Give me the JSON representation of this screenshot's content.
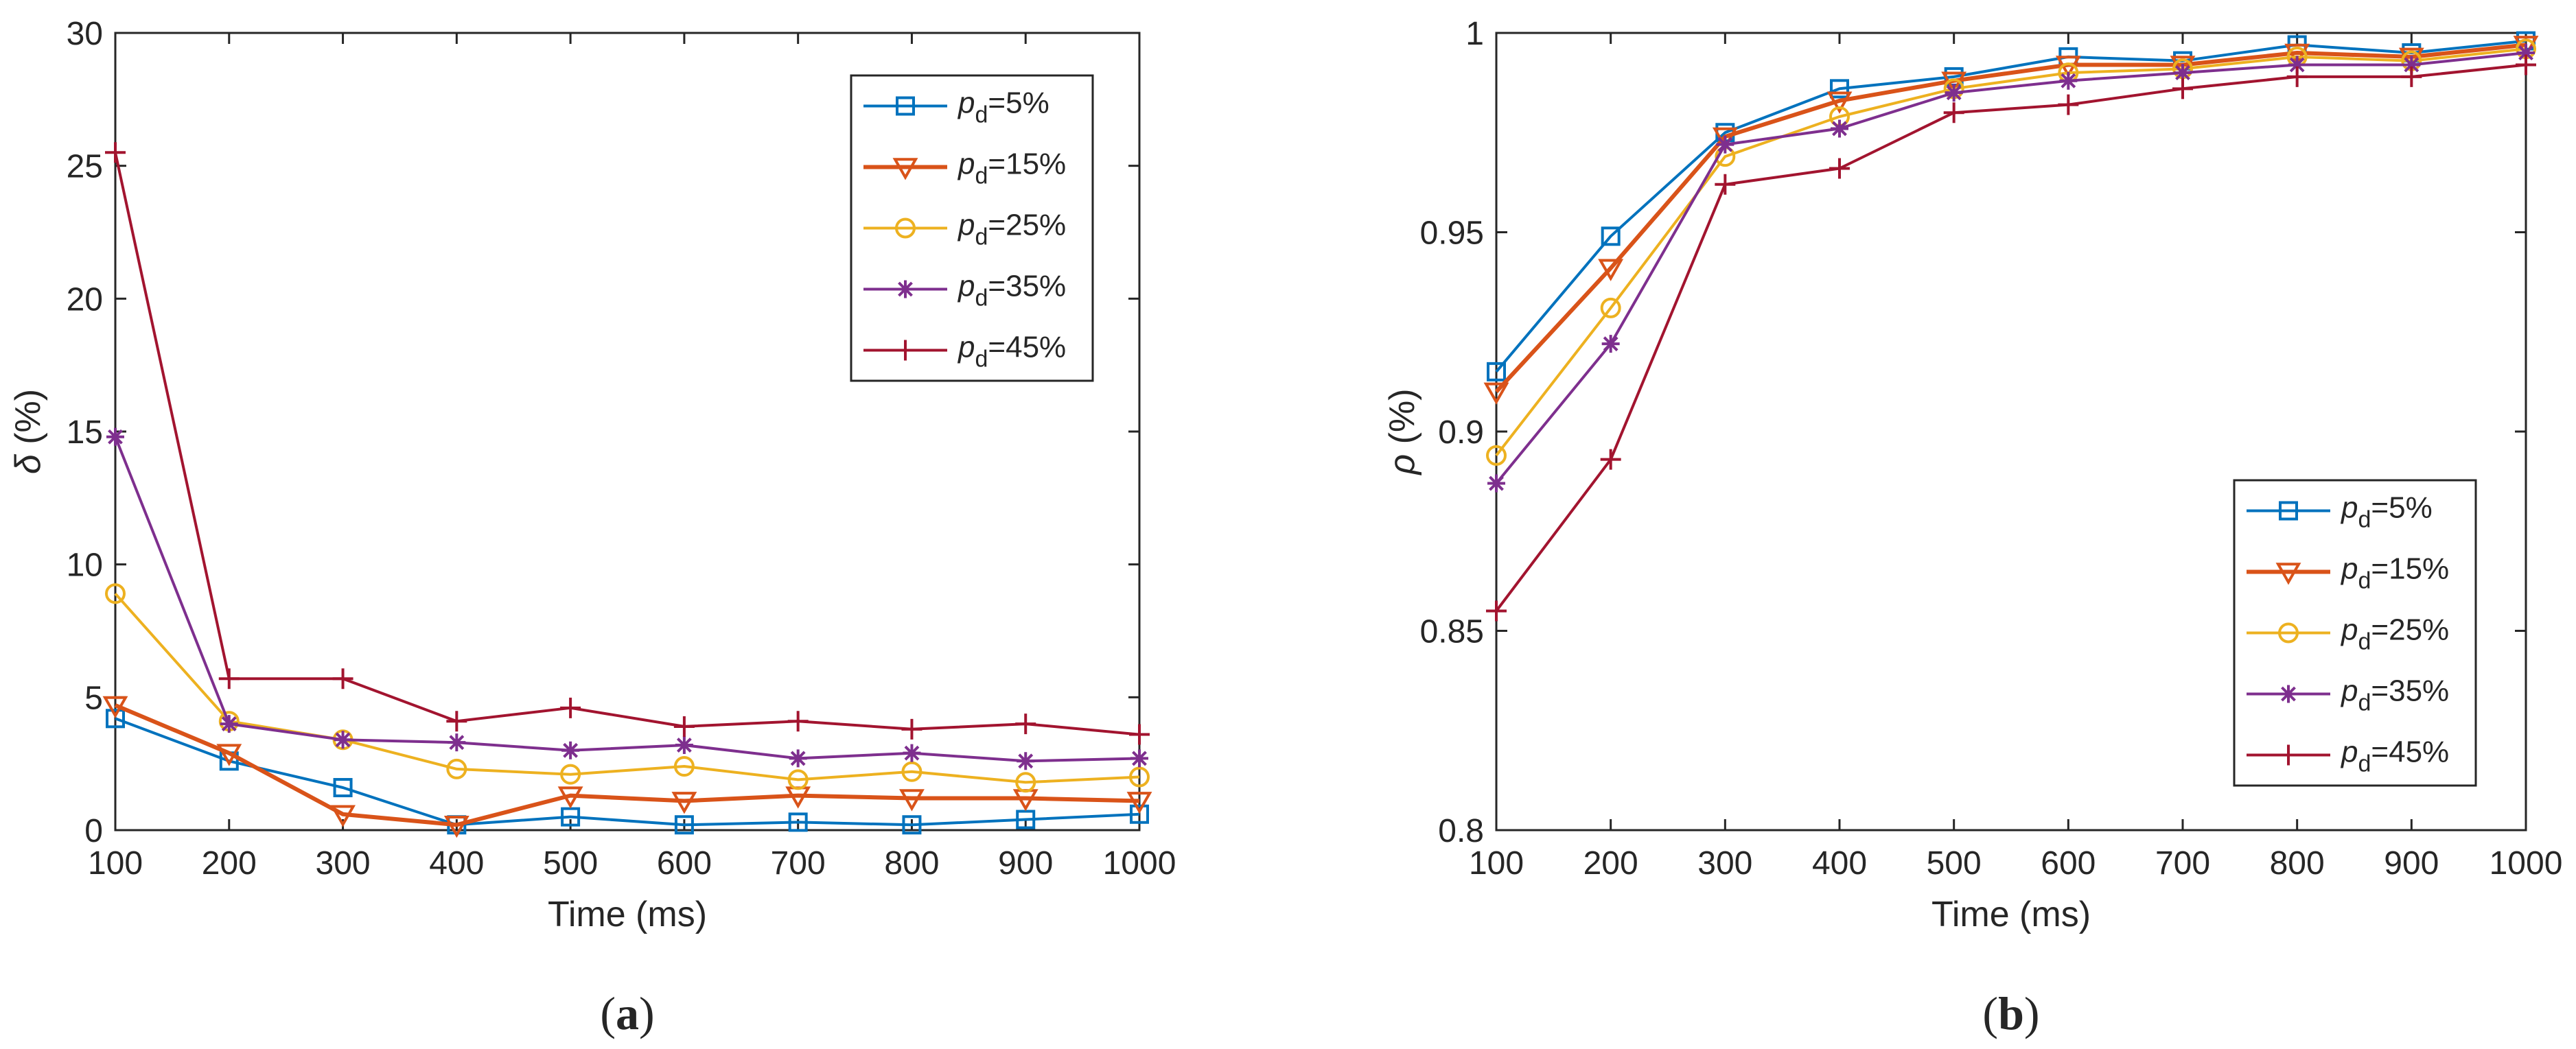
{
  "chart_data": [
    {
      "type": "line",
      "panel_label": "(a)",
      "panel_letter": "a",
      "xlabel": "Time (ms)",
      "ylabel_symbol": "δ",
      "ylabel_unit": " (%)",
      "x": [
        100,
        200,
        300,
        400,
        500,
        600,
        700,
        800,
        900,
        1000
      ],
      "xlim": [
        100,
        1000
      ],
      "ylim": [
        0,
        30
      ],
      "xticks": [
        "100",
        "200",
        "300",
        "400",
        "500",
        "600",
        "700",
        "800",
        "900",
        "1000"
      ],
      "yticks": [
        "0",
        "5",
        "10",
        "15",
        "20",
        "25",
        "30"
      ],
      "ytick_values": [
        0,
        5,
        10,
        15,
        20,
        25,
        30
      ],
      "grid": false,
      "legend_position": "top-right",
      "series": [
        {
          "name": "p_d=5%",
          "legend_var": "p",
          "legend_sub": "d",
          "legend_value": "=5%",
          "color": "#0072BD",
          "marker": "square",
          "values": [
            4.2,
            2.6,
            1.6,
            0.2,
            0.5,
            0.2,
            0.3,
            0.2,
            0.4,
            0.6
          ]
        },
        {
          "name": "p_d=15%",
          "legend_var": "p",
          "legend_sub": "d",
          "legend_value": "=15%",
          "color": "#D95319",
          "marker": "triangle-down",
          "values": [
            4.7,
            2.9,
            0.6,
            0.2,
            1.3,
            1.1,
            1.3,
            1.2,
            1.2,
            1.1
          ]
        },
        {
          "name": "p_d=25%",
          "legend_var": "p",
          "legend_sub": "d",
          "legend_value": "=25%",
          "color": "#EDB120",
          "marker": "circle",
          "values": [
            8.9,
            4.1,
            3.4,
            2.3,
            2.1,
            2.4,
            1.9,
            2.2,
            1.8,
            2.0
          ]
        },
        {
          "name": "p_d=35%",
          "legend_var": "p",
          "legend_sub": "d",
          "legend_value": "=35%",
          "color": "#7E2F8E",
          "marker": "asterisk",
          "values": [
            14.8,
            4.0,
            3.4,
            3.3,
            3.0,
            3.2,
            2.7,
            2.9,
            2.6,
            2.7
          ]
        },
        {
          "name": "p_d=45%",
          "legend_var": "p",
          "legend_sub": "d",
          "legend_value": "=45%",
          "color": "#A2142F",
          "marker": "plus",
          "values": [
            25.5,
            5.7,
            5.7,
            4.1,
            4.6,
            3.9,
            4.1,
            3.8,
            4.0,
            3.6
          ]
        }
      ]
    },
    {
      "type": "line",
      "panel_label": "(b)",
      "panel_letter": "b",
      "xlabel": "Time (ms)",
      "ylabel_symbol": "ρ",
      "ylabel_unit": " (%)",
      "x": [
        100,
        200,
        300,
        400,
        500,
        600,
        700,
        800,
        900,
        1000
      ],
      "xlim": [
        100,
        1000
      ],
      "ylim": [
        0.8,
        1.0
      ],
      "xticks": [
        "100",
        "200",
        "300",
        "400",
        "500",
        "600",
        "700",
        "800",
        "900",
        "1000"
      ],
      "yticks": [
        "0.8",
        "0.85",
        "0.9",
        "0.95",
        "1"
      ],
      "ytick_values": [
        0.8,
        0.85,
        0.9,
        0.95,
        1.0
      ],
      "grid": false,
      "legend_position": "bottom-right",
      "series": [
        {
          "name": "p_d=5%",
          "legend_var": "p",
          "legend_sub": "d",
          "legend_value": "=5%",
          "color": "#0072BD",
          "marker": "square",
          "values": [
            0.915,
            0.949,
            0.975,
            0.986,
            0.989,
            0.994,
            0.993,
            0.997,
            0.995,
            0.998
          ]
        },
        {
          "name": "p_d=15%",
          "legend_var": "p",
          "legend_sub": "d",
          "legend_value": "=15%",
          "color": "#D95319",
          "marker": "triangle-down",
          "values": [
            0.91,
            0.941,
            0.974,
            0.983,
            0.988,
            0.992,
            0.992,
            0.995,
            0.994,
            0.997
          ]
        },
        {
          "name": "p_d=25%",
          "legend_var": "p",
          "legend_sub": "d",
          "legend_value": "=25%",
          "color": "#EDB120",
          "marker": "circle",
          "values": [
            0.894,
            0.931,
            0.969,
            0.979,
            0.986,
            0.99,
            0.991,
            0.994,
            0.993,
            0.996
          ]
        },
        {
          "name": "p_d=35%",
          "legend_var": "p",
          "legend_sub": "d",
          "legend_value": "=35%",
          "color": "#7E2F8E",
          "marker": "asterisk",
          "values": [
            0.887,
            0.922,
            0.972,
            0.976,
            0.985,
            0.988,
            0.99,
            0.992,
            0.992,
            0.995
          ]
        },
        {
          "name": "p_d=45%",
          "legend_var": "p",
          "legend_sub": "d",
          "legend_value": "=45%",
          "color": "#A2142F",
          "marker": "plus",
          "values": [
            0.855,
            0.893,
            0.962,
            0.966,
            0.98,
            0.982,
            0.986,
            0.989,
            0.989,
            0.992
          ]
        }
      ]
    }
  ]
}
